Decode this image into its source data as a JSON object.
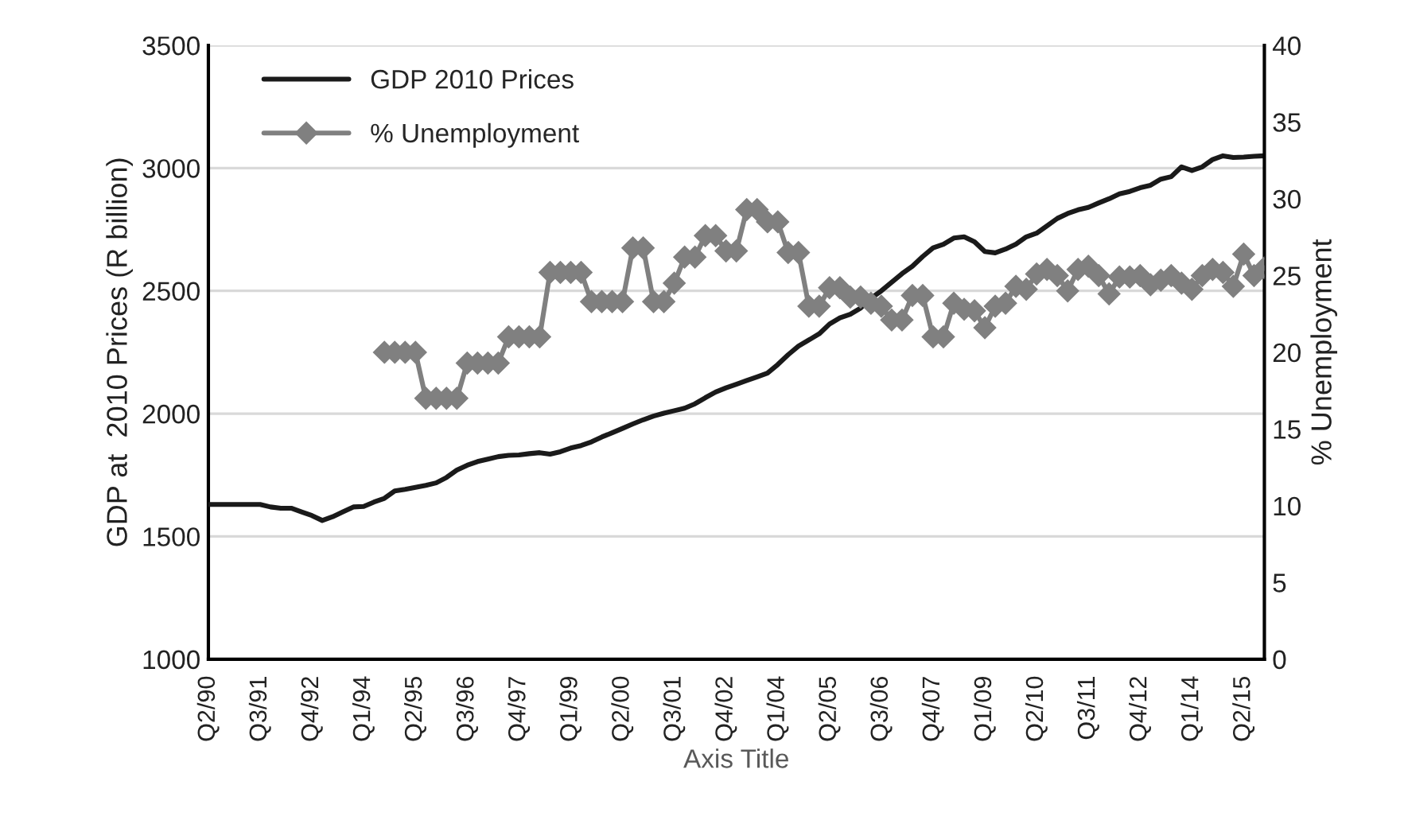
{
  "chart_data": {
    "type": "line",
    "xlabel": "Axis Title",
    "ylabel": "GDP at  2010 Prices (R billion)",
    "y2label": "% Unemployment",
    "categories": [
      "Q2/90",
      null,
      null,
      null,
      null,
      "Q3/91",
      null,
      null,
      null,
      null,
      "Q4/92",
      null,
      null,
      null,
      null,
      "Q1/94",
      null,
      null,
      null,
      null,
      "Q2/95",
      null,
      null,
      null,
      null,
      "Q3/96",
      null,
      null,
      null,
      null,
      "Q4/97",
      null,
      null,
      null,
      null,
      "Q1/99",
      null,
      null,
      null,
      null,
      "Q2/00",
      null,
      null,
      null,
      null,
      "Q3/01",
      null,
      null,
      null,
      null,
      "Q4/02",
      null,
      null,
      null,
      null,
      "Q1/04",
      null,
      null,
      null,
      null,
      "Q2/05",
      null,
      null,
      null,
      null,
      "Q3/06",
      null,
      null,
      null,
      null,
      "Q4/07",
      null,
      null,
      null,
      null,
      "Q1/09",
      null,
      null,
      null,
      null,
      "Q2/10",
      null,
      null,
      null,
      null,
      "Q3/11",
      null,
      null,
      null,
      null,
      "Q4/12",
      null,
      null,
      null,
      null,
      "Q1/14",
      null,
      null,
      null,
      null,
      "Q2/15",
      null,
      null
    ],
    "series": [
      {
        "name": "GDP 2010 Prices",
        "color": "#1a1a1a",
        "marker": "none",
        "values": [
          1630,
          1630,
          1630,
          1630,
          1630,
          1630,
          1620,
          1615,
          1615,
          1600,
          1585,
          1565,
          1580,
          1600,
          1620,
          1622,
          1640,
          1655,
          1685,
          1692,
          1700,
          1708,
          1718,
          1740,
          1770,
          1790,
          1805,
          1815,
          1825,
          1830,
          1832,
          1837,
          1841,
          1835,
          1845,
          1860,
          1870,
          1885,
          1905,
          1922,
          1940,
          1958,
          1975,
          1990,
          2002,
          2012,
          2022,
          2040,
          2065,
          2088,
          2105,
          2120,
          2135,
          2150,
          2165,
          2200,
          2240,
          2275,
          2300,
          2325,
          2365,
          2390,
          2405,
          2430,
          2470,
          2500,
          2535,
          2570,
          2600,
          2640,
          2675,
          2690,
          2715,
          2720,
          2700,
          2660,
          2655,
          2670,
          2690,
          2720,
          2735,
          2765,
          2795,
          2815,
          2830,
          2840,
          2858,
          2875,
          2895,
          2905,
          2920,
          2930,
          2955,
          2965,
          3005,
          2990,
          3005,
          3035,
          3050,
          3043,
          3045,
          3048,
          3050
        ]
      },
      {
        "name": "% Unemployment",
        "color": "#808080",
        "marker": "diamond",
        "axis": "y2",
        "values": [
          null,
          null,
          null,
          null,
          null,
          null,
          null,
          null,
          null,
          null,
          null,
          null,
          null,
          null,
          null,
          null,
          null,
          20.0,
          20.0,
          20.0,
          20.0,
          17.0,
          17.0,
          17.0,
          17.0,
          19.3,
          19.3,
          19.3,
          19.3,
          21.0,
          21.0,
          21.0,
          21.0,
          25.2,
          25.2,
          25.2,
          25.2,
          23.3,
          23.3,
          23.3,
          23.3,
          26.8,
          26.8,
          23.3,
          23.3,
          24.5,
          26.2,
          26.2,
          27.6,
          27.6,
          26.6,
          26.6,
          29.3,
          29.3,
          28.5,
          28.5,
          26.5,
          26.5,
          23.0,
          23.0,
          24.2,
          24.2,
          23.6,
          23.6,
          23.2,
          23.0,
          22.1,
          22.1,
          23.7,
          23.7,
          21.0,
          21.0,
          23.2,
          22.8,
          22.7,
          21.6,
          23.0,
          23.2,
          24.3,
          24.1,
          25.1,
          25.4,
          25.0,
          24.0,
          25.4,
          25.6,
          25.0,
          23.8,
          24.9,
          24.9,
          25.0,
          24.4,
          24.7,
          25.0,
          24.5,
          24.1,
          25.0,
          25.4,
          25.2,
          24.3,
          26.4,
          25.0,
          25.5
        ]
      }
    ],
    "ylim": [
      1000,
      3500
    ],
    "yticks": [
      1000,
      1500,
      2000,
      2500,
      3000,
      3500
    ],
    "y2lim": [
      0,
      40
    ],
    "y2ticks": [
      0,
      5,
      10,
      15,
      20,
      25,
      30,
      35,
      40
    ],
    "grid": "y",
    "legend": "top left",
    "line_style": "solid"
  }
}
